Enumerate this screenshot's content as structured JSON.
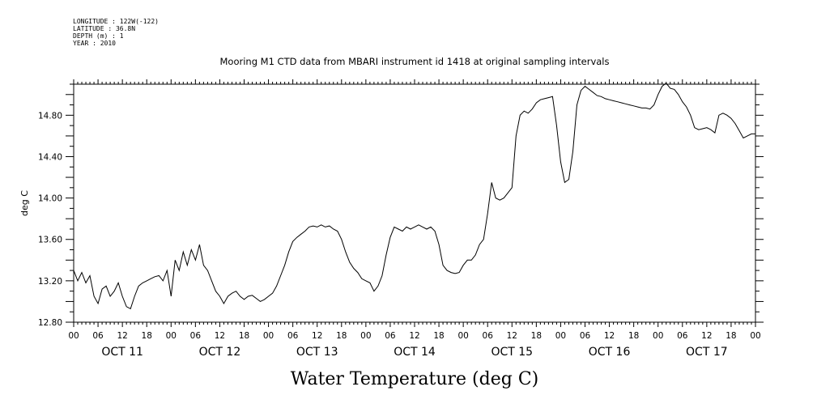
{
  "header": {
    "longitude": "LONGITUDE : 122W(-122)",
    "latitude": "LATITUDE : 36.8N",
    "depth": "DEPTH (m) : 1",
    "year": "YEAR : 2010"
  },
  "chart_data": {
    "type": "line",
    "title": "Mooring M1 CTD data from MBARI instrument id 1418 at original sampling intervals",
    "xlabel": "Water Temperature (deg C)",
    "ylabel": "deg C",
    "ylim": [
      12.8,
      15.1
    ],
    "yticks": [
      "12.80",
      "13.20",
      "13.60",
      "14.00",
      "14.40",
      "14.80"
    ],
    "xlim_days": [
      "OCT 11 00:00",
      "OCT 18 00:00"
    ],
    "hour_ticks": [
      "00",
      "06",
      "12",
      "18"
    ],
    "day_labels": [
      "OCT 11",
      "OCT 12",
      "OCT 13",
      "OCT 14",
      "OCT 15",
      "OCT 16",
      "OCT 17"
    ],
    "grid": false,
    "line_color": "#000000",
    "series": [
      {
        "points": [
          [
            "OCT 11 00:00",
            13.3
          ],
          [
            "OCT 11 01:00",
            13.2
          ],
          [
            "OCT 11 02:00",
            13.28
          ],
          [
            "OCT 11 03:00",
            13.18
          ],
          [
            "OCT 11 04:00",
            13.25
          ],
          [
            "OCT 11 05:00",
            13.05
          ],
          [
            "OCT 11 06:00",
            12.98
          ],
          [
            "OCT 11 07:00",
            13.12
          ],
          [
            "OCT 11 08:00",
            13.15
          ],
          [
            "OCT 11 09:00",
            13.05
          ],
          [
            "OCT 11 10:00",
            13.1
          ],
          [
            "OCT 11 11:00",
            13.18
          ],
          [
            "OCT 11 12:00",
            13.05
          ],
          [
            "OCT 11 13:00",
            12.95
          ],
          [
            "OCT 11 14:00",
            12.93
          ],
          [
            "OCT 11 15:00",
            13.05
          ],
          [
            "OCT 11 16:00",
            13.15
          ],
          [
            "OCT 11 17:00",
            13.18
          ],
          [
            "OCT 11 18:00",
            13.2
          ],
          [
            "OCT 11 19:00",
            13.22
          ],
          [
            "OCT 11 20:00",
            13.24
          ],
          [
            "OCT 11 21:00",
            13.25
          ],
          [
            "OCT 11 22:00",
            13.2
          ],
          [
            "OCT 11 23:00",
            13.3
          ],
          [
            "OCT 12 00:00",
            13.05
          ],
          [
            "OCT 12 01:00",
            13.4
          ],
          [
            "OCT 12 02:00",
            13.3
          ],
          [
            "OCT 12 03:00",
            13.48
          ],
          [
            "OCT 12 04:00",
            13.35
          ],
          [
            "OCT 12 05:00",
            13.5
          ],
          [
            "OCT 12 06:00",
            13.4
          ],
          [
            "OCT 12 07:00",
            13.55
          ],
          [
            "OCT 12 08:00",
            13.35
          ],
          [
            "OCT 12 09:00",
            13.3
          ],
          [
            "OCT 12 10:00",
            13.2
          ],
          [
            "OCT 12 11:00",
            13.1
          ],
          [
            "OCT 12 12:00",
            13.05
          ],
          [
            "OCT 12 13:00",
            12.98
          ],
          [
            "OCT 12 14:00",
            13.05
          ],
          [
            "OCT 12 15:00",
            13.08
          ],
          [
            "OCT 12 16:00",
            13.1
          ],
          [
            "OCT 12 17:00",
            13.05
          ],
          [
            "OCT 12 18:00",
            13.02
          ],
          [
            "OCT 12 19:00",
            13.05
          ],
          [
            "OCT 12 20:00",
            13.06
          ],
          [
            "OCT 12 21:00",
            13.03
          ],
          [
            "OCT 12 22:00",
            13.0
          ],
          [
            "OCT 12 23:00",
            13.02
          ],
          [
            "OCT 13 00:00",
            13.05
          ],
          [
            "OCT 13 01:00",
            13.08
          ],
          [
            "OCT 13 02:00",
            13.15
          ],
          [
            "OCT 13 03:00",
            13.25
          ],
          [
            "OCT 13 04:00",
            13.35
          ],
          [
            "OCT 13 05:00",
            13.48
          ],
          [
            "OCT 13 06:00",
            13.58
          ],
          [
            "OCT 13 07:00",
            13.62
          ],
          [
            "OCT 13 08:00",
            13.65
          ],
          [
            "OCT 13 09:00",
            13.68
          ],
          [
            "OCT 13 10:00",
            13.72
          ],
          [
            "OCT 13 11:00",
            13.73
          ],
          [
            "OCT 13 12:00",
            13.72
          ],
          [
            "OCT 13 13:00",
            13.74
          ],
          [
            "OCT 13 14:00",
            13.72
          ],
          [
            "OCT 13 15:00",
            13.73
          ],
          [
            "OCT 13 16:00",
            13.7
          ],
          [
            "OCT 13 17:00",
            13.68
          ],
          [
            "OCT 13 18:00",
            13.6
          ],
          [
            "OCT 13 19:00",
            13.48
          ],
          [
            "OCT 13 20:00",
            13.38
          ],
          [
            "OCT 13 21:00",
            13.32
          ],
          [
            "OCT 13 22:00",
            13.28
          ],
          [
            "OCT 13 23:00",
            13.22
          ],
          [
            "OCT 14 00:00",
            13.2
          ],
          [
            "OCT 14 01:00",
            13.18
          ],
          [
            "OCT 14 02:00",
            13.1
          ],
          [
            "OCT 14 03:00",
            13.15
          ],
          [
            "OCT 14 04:00",
            13.25
          ],
          [
            "OCT 14 05:00",
            13.45
          ],
          [
            "OCT 14 06:00",
            13.62
          ],
          [
            "OCT 14 07:00",
            13.72
          ],
          [
            "OCT 14 08:00",
            13.7
          ],
          [
            "OCT 14 09:00",
            13.68
          ],
          [
            "OCT 14 10:00",
            13.72
          ],
          [
            "OCT 14 11:00",
            13.7
          ],
          [
            "OCT 14 12:00",
            13.72
          ],
          [
            "OCT 14 13:00",
            13.74
          ],
          [
            "OCT 14 14:00",
            13.72
          ],
          [
            "OCT 14 15:00",
            13.7
          ],
          [
            "OCT 14 16:00",
            13.72
          ],
          [
            "OCT 14 17:00",
            13.68
          ],
          [
            "OCT 14 18:00",
            13.55
          ],
          [
            "OCT 14 19:00",
            13.35
          ],
          [
            "OCT 14 20:00",
            13.3
          ],
          [
            "OCT 14 21:00",
            13.28
          ],
          [
            "OCT 14 22:00",
            13.27
          ],
          [
            "OCT 14 23:00",
            13.28
          ],
          [
            "OCT 15 00:00",
            13.35
          ],
          [
            "OCT 15 01:00",
            13.4
          ],
          [
            "OCT 15 02:00",
            13.4
          ],
          [
            "OCT 15 03:00",
            13.45
          ],
          [
            "OCT 15 04:00",
            13.55
          ],
          [
            "OCT 15 05:00",
            13.6
          ],
          [
            "OCT 15 06:00",
            13.85
          ],
          [
            "OCT 15 07:00",
            14.15
          ],
          [
            "OCT 15 08:00",
            14.0
          ],
          [
            "OCT 15 09:00",
            13.98
          ],
          [
            "OCT 15 10:00",
            14.0
          ],
          [
            "OCT 15 11:00",
            14.05
          ],
          [
            "OCT 15 12:00",
            14.1
          ],
          [
            "OCT 15 13:00",
            14.6
          ],
          [
            "OCT 15 14:00",
            14.8
          ],
          [
            "OCT 15 15:00",
            14.84
          ],
          [
            "OCT 15 16:00",
            14.82
          ],
          [
            "OCT 15 17:00",
            14.86
          ],
          [
            "OCT 15 18:00",
            14.92
          ],
          [
            "OCT 15 19:00",
            14.95
          ],
          [
            "OCT 15 20:00",
            14.96
          ],
          [
            "OCT 15 21:00",
            14.97
          ],
          [
            "OCT 15 22:00",
            14.98
          ],
          [
            "OCT 15 23:00",
            14.7
          ],
          [
            "OCT 16 00:00",
            14.35
          ],
          [
            "OCT 16 01:00",
            14.15
          ],
          [
            "OCT 16 02:00",
            14.18
          ],
          [
            "OCT 16 03:00",
            14.45
          ],
          [
            "OCT 16 04:00",
            14.9
          ],
          [
            "OCT 16 05:00",
            15.04
          ],
          [
            "OCT 16 06:00",
            15.08
          ],
          [
            "OCT 16 07:00",
            15.05
          ],
          [
            "OCT 16 08:00",
            15.02
          ],
          [
            "OCT 16 09:00",
            14.99
          ],
          [
            "OCT 16 10:00",
            14.98
          ],
          [
            "OCT 16 11:00",
            14.96
          ],
          [
            "OCT 16 12:00",
            14.95
          ],
          [
            "OCT 16 13:00",
            14.94
          ],
          [
            "OCT 16 14:00",
            14.93
          ],
          [
            "OCT 16 15:00",
            14.92
          ],
          [
            "OCT 16 16:00",
            14.91
          ],
          [
            "OCT 16 17:00",
            14.9
          ],
          [
            "OCT 16 18:00",
            14.89
          ],
          [
            "OCT 16 19:00",
            14.88
          ],
          [
            "OCT 16 20:00",
            14.87
          ],
          [
            "OCT 16 21:00",
            14.87
          ],
          [
            "OCT 16 22:00",
            14.86
          ],
          [
            "OCT 16 23:00",
            14.9
          ],
          [
            "OCT 17 00:00",
            15.0
          ],
          [
            "OCT 17 01:00",
            15.08
          ],
          [
            "OCT 17 02:00",
            15.11
          ],
          [
            "OCT 17 03:00",
            15.06
          ],
          [
            "OCT 17 04:00",
            15.05
          ],
          [
            "OCT 17 05:00",
            15.0
          ],
          [
            "OCT 17 06:00",
            14.93
          ],
          [
            "OCT 17 07:00",
            14.88
          ],
          [
            "OCT 17 08:00",
            14.8
          ],
          [
            "OCT 17 09:00",
            14.68
          ],
          [
            "OCT 17 10:00",
            14.66
          ],
          [
            "OCT 17 11:00",
            14.67
          ],
          [
            "OCT 17 12:00",
            14.68
          ],
          [
            "OCT 17 13:00",
            14.66
          ],
          [
            "OCT 17 14:00",
            14.63
          ],
          [
            "OCT 17 15:00",
            14.8
          ],
          [
            "OCT 17 16:00",
            14.82
          ],
          [
            "OCT 17 17:00",
            14.8
          ],
          [
            "OCT 17 18:00",
            14.77
          ],
          [
            "OCT 17 19:00",
            14.72
          ],
          [
            "OCT 17 20:00",
            14.65
          ],
          [
            "OCT 17 21:00",
            14.58
          ],
          [
            "OCT 17 22:00",
            14.6
          ],
          [
            "OCT 17 23:00",
            14.62
          ],
          [
            "OCT 18 00:00",
            14.62
          ]
        ]
      }
    ]
  }
}
